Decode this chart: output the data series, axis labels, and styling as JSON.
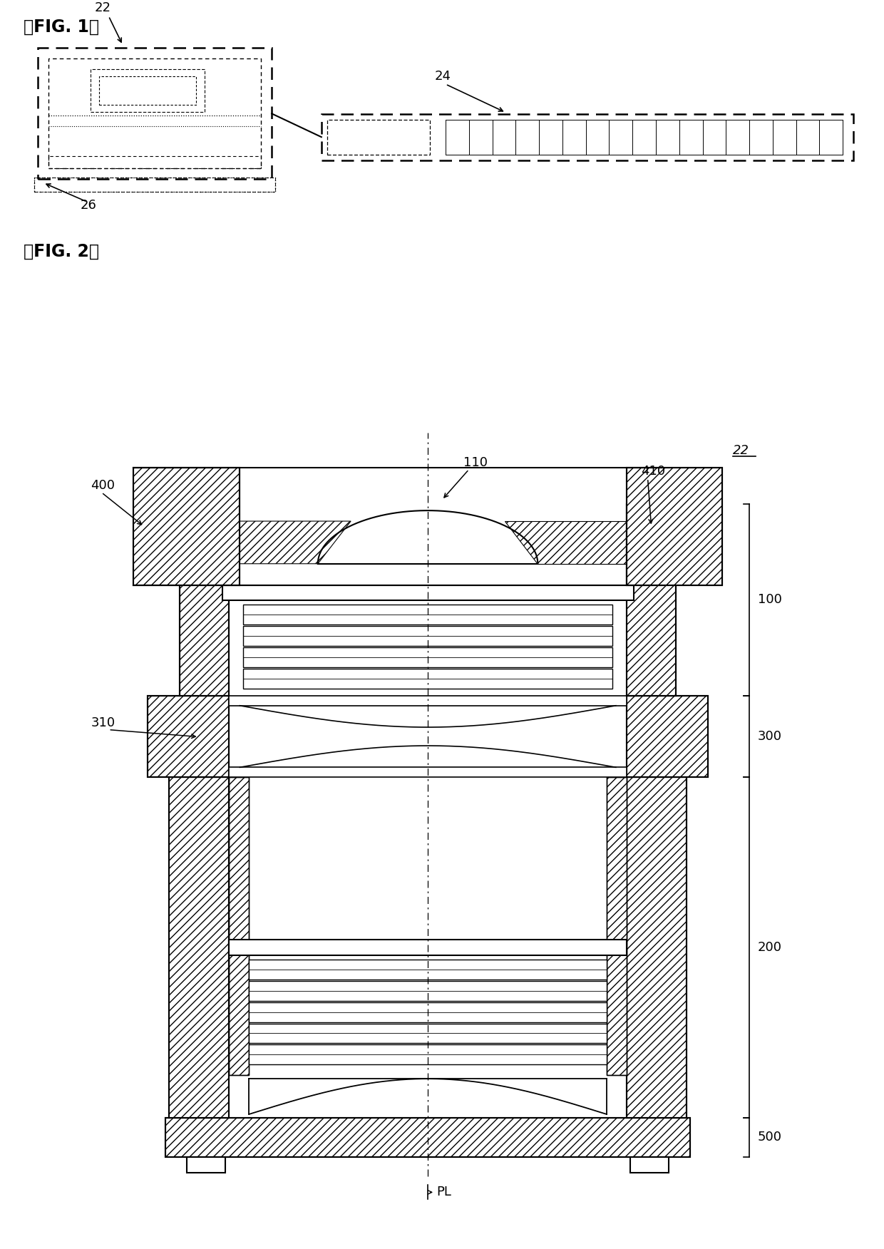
{
  "bg_color": "#ffffff",
  "lc": "#000000",
  "fig1_title": "』FIG. 1】",
  "fig2_title": "』FIG. 2】",
  "fig_width": 12.4,
  "fig_height": 17.52,
  "dpi": 100
}
